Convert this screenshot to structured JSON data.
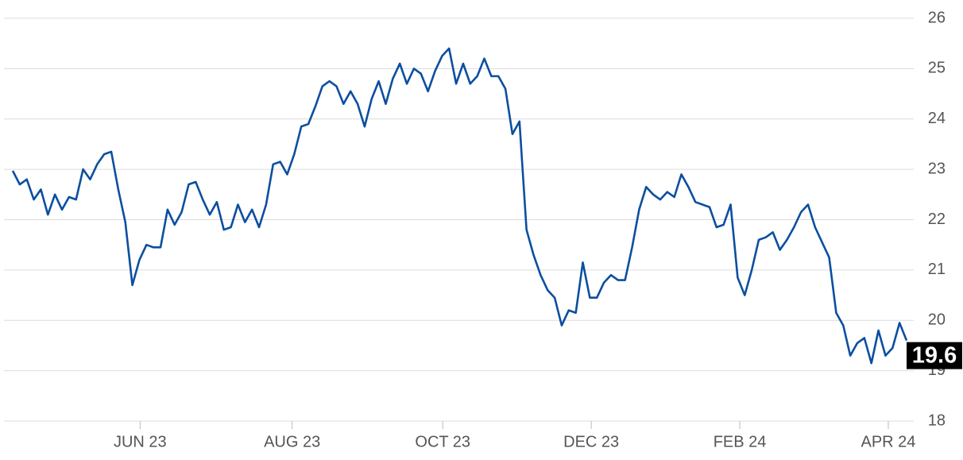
{
  "chart_data": {
    "type": "line",
    "series": [
      {
        "color": "#0b4f9f",
        "values": [
          22.97,
          22.7,
          22.8,
          22.4,
          22.6,
          22.1,
          22.5,
          22.2,
          22.45,
          22.4,
          23.0,
          22.8,
          23.1,
          23.3,
          23.35,
          22.6,
          21.95,
          20.7,
          21.2,
          21.5,
          21.45,
          21.45,
          22.2,
          21.9,
          22.15,
          22.7,
          22.75,
          22.4,
          22.1,
          22.35,
          21.8,
          21.85,
          22.3,
          21.95,
          22.2,
          21.85,
          22.3,
          23.1,
          23.15,
          22.9,
          23.3,
          23.85,
          23.9,
          24.25,
          24.65,
          24.75,
          24.65,
          24.3,
          24.55,
          24.3,
          23.85,
          24.4,
          24.75,
          24.3,
          24.8,
          25.1,
          24.7,
          25.0,
          24.9,
          24.55,
          24.95,
          25.25,
          25.4,
          24.7,
          25.1,
          24.7,
          24.85,
          25.2,
          24.85,
          24.85,
          24.6,
          23.7,
          23.95,
          21.8,
          21.3,
          20.9,
          20.6,
          20.45,
          19.9,
          20.2,
          20.15,
          21.15,
          20.45,
          20.45,
          20.75,
          20.9,
          20.8,
          20.8,
          21.45,
          22.2,
          22.65,
          22.5,
          22.4,
          22.55,
          22.45,
          22.9,
          22.65,
          22.35,
          22.3,
          22.25,
          21.85,
          21.9,
          22.3,
          20.85,
          20.5,
          21.0,
          21.6,
          21.65,
          21.75,
          21.4,
          21.6,
          21.85,
          22.15,
          22.3,
          21.85,
          21.55,
          21.25,
          20.15,
          19.9,
          19.3,
          19.55,
          19.65,
          19.15,
          19.8,
          19.3,
          19.45,
          19.95,
          19.6
        ]
      }
    ],
    "xlim": [
      0,
      127
    ],
    "xticks": [
      {
        "value": 18.1,
        "label": "JUN 23"
      },
      {
        "value": 39.7,
        "label": "AUG 23"
      },
      {
        "value": 61.1,
        "label": "OCT 23"
      },
      {
        "value": 82.2,
        "label": "DEC 23"
      },
      {
        "value": 103.3,
        "label": "FEB 24"
      },
      {
        "value": 124.4,
        "label": "APR 24"
      }
    ],
    "ylim": [
      18,
      26
    ],
    "yticks": [
      18,
      19,
      20,
      21,
      22,
      23,
      24,
      25,
      26
    ],
    "grid": true
  }
}
